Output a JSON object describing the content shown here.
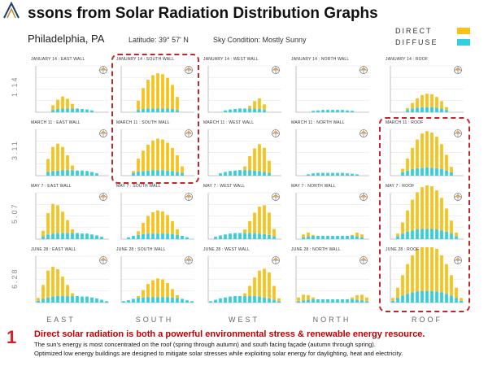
{
  "title": "ssons from Solar Radiation Distribution Graphs",
  "subtitle": {
    "city": "Philadelphia, PA",
    "latitude": "Latitude: 39° 57' N",
    "sky": "Sky Condition: Mostly Sunny"
  },
  "legend": {
    "direct": "DIRECT",
    "diffuse": "DIFFUSE"
  },
  "colors": {
    "direct": "#f6c21b",
    "diffuse": "#33cfe0",
    "highlight": "#c0262c",
    "accent": "#d12027"
  },
  "columns": [
    "EAST",
    "SOUTH",
    "WEST",
    "NORTH",
    "ROOF"
  ],
  "rows": [
    "1.14",
    "3.11",
    "5.07",
    "6.28"
  ],
  "chart_data": {
    "type": "bar",
    "stacked": true,
    "series_names": [
      "DIRECT",
      "DIFFUSE"
    ],
    "hours": [
      "5",
      "6",
      "7",
      "8",
      "9",
      "10",
      "11",
      "12",
      "13",
      "14",
      "15",
      "16",
      "17",
      "18",
      "19"
    ],
    "ylim": [
      0,
      10
    ],
    "panels": [
      [
        {
          "title": "JANUARY 14 : EAST WALL",
          "direct": [
            0,
            0,
            0,
            1.0,
            2.0,
            2.6,
            2.1,
            1.0,
            0,
            0,
            0,
            0,
            0,
            0,
            0
          ],
          "diffuse": [
            0,
            0,
            0,
            0.5,
            0.7,
            0.8,
            0.8,
            0.8,
            0.8,
            0.7,
            0.6,
            0.4,
            0,
            0,
            0
          ]
        },
        {
          "title": "JANUARY 14 : SOUTH WALL",
          "direct": [
            0,
            0,
            0,
            2.0,
            4.5,
            6.2,
            7.2,
            7.6,
            7.4,
            6.6,
            5.2,
            2.8,
            0,
            0,
            0
          ],
          "diffuse": [
            0,
            0,
            0,
            0.5,
            0.7,
            0.8,
            0.8,
            0.8,
            0.8,
            0.8,
            0.7,
            0.5,
            0,
            0,
            0
          ]
        },
        {
          "title": "JANUARY 14 : WEST WALL",
          "direct": [
            0,
            0,
            0,
            0,
            0,
            0,
            0,
            0,
            0.6,
            1.6,
            2.3,
            1.2,
            0,
            0,
            0
          ],
          "diffuse": [
            0,
            0,
            0,
            0.4,
            0.6,
            0.7,
            0.8,
            0.8,
            0.8,
            0.8,
            0.7,
            0.5,
            0,
            0,
            0
          ]
        },
        {
          "title": "JANUARY 14 : NORTH WALL",
          "direct": [
            0,
            0,
            0,
            0,
            0,
            0,
            0,
            0,
            0,
            0,
            0,
            0,
            0,
            0,
            0
          ],
          "diffuse": [
            0,
            0,
            0,
            0.3,
            0.4,
            0.5,
            0.5,
            0.5,
            0.5,
            0.5,
            0.4,
            0.3,
            0,
            0,
            0
          ]
        },
        {
          "title": "JANUARY 14 : ROOF",
          "direct": [
            0,
            0,
            0,
            0.4,
            1.2,
            2.0,
            2.6,
            2.9,
            2.8,
            2.3,
            1.6,
            0.6,
            0,
            0,
            0
          ],
          "diffuse": [
            0,
            0,
            0,
            0.5,
            0.8,
            1.0,
            1.1,
            1.1,
            1.1,
            1.0,
            0.8,
            0.5,
            0,
            0,
            0
          ]
        }
      ],
      [
        {
          "title": "MARCH 11 : EAST WALL",
          "direct": [
            0,
            0,
            2.8,
            5.2,
            5.8,
            5.0,
            3.2,
            1.0,
            0,
            0,
            0,
            0,
            0,
            0,
            0
          ],
          "diffuse": [
            0,
            0,
            0.8,
            1.0,
            1.1,
            1.2,
            1.2,
            1.2,
            1.1,
            1.1,
            1.0,
            0.8,
            0.5,
            0,
            0
          ]
        },
        {
          "title": "MARCH 11 : SOUTH WALL",
          "direct": [
            0,
            0,
            0.4,
            2.8,
            4.4,
            5.6,
            6.4,
            6.8,
            6.6,
            6.0,
            5.0,
            3.6,
            1.4,
            0,
            0
          ],
          "diffuse": [
            0,
            0,
            0.6,
            0.9,
            1.0,
            1.1,
            1.2,
            1.2,
            1.2,
            1.1,
            1.0,
            0.8,
            0.6,
            0,
            0
          ]
        },
        {
          "title": "MARCH 11 : WEST WALL",
          "direct": [
            0,
            0,
            0,
            0,
            0,
            0,
            0,
            0.8,
            3.0,
            4.8,
            5.8,
            5.2,
            2.6,
            0,
            0
          ],
          "diffuse": [
            0,
            0,
            0.5,
            0.8,
            1.0,
            1.1,
            1.2,
            1.2,
            1.2,
            1.1,
            1.0,
            0.8,
            0.6,
            0,
            0
          ]
        },
        {
          "title": "MARCH 11 : NORTH WALL",
          "direct": [
            0,
            0,
            0,
            0,
            0,
            0,
            0,
            0,
            0,
            0,
            0,
            0,
            0,
            0,
            0
          ],
          "diffuse": [
            0,
            0,
            0.3,
            0.5,
            0.6,
            0.6,
            0.6,
            0.6,
            0.6,
            0.6,
            0.5,
            0.4,
            0.3,
            0,
            0
          ]
        },
        {
          "title": "MARCH 11 : ROOF",
          "direct": [
            0,
            0,
            0.8,
            2.6,
            4.6,
            6.2,
            7.4,
            7.8,
            7.6,
            6.8,
            5.4,
            3.4,
            1.2,
            0,
            0
          ],
          "diffuse": [
            0,
            0,
            0.7,
            1.1,
            1.4,
            1.6,
            1.7,
            1.8,
            1.7,
            1.6,
            1.4,
            1.1,
            0.7,
            0,
            0
          ]
        }
      ],
      [
        {
          "title": "MAY 7 : EAST WALL",
          "direct": [
            0,
            1.2,
            4.6,
            6.4,
            6.0,
            4.6,
            2.8,
            0.8,
            0,
            0,
            0,
            0,
            0,
            0,
            0
          ],
          "diffuse": [
            0,
            0.6,
            1.0,
            1.2,
            1.3,
            1.3,
            1.3,
            1.3,
            1.3,
            1.2,
            1.2,
            1.0,
            0.8,
            0.5,
            0
          ],
          "bars": 15
        },
        {
          "title": "MAY 7 : SOUTH WALL",
          "direct": [
            0,
            0,
            0,
            0.8,
            2.4,
            3.8,
            4.6,
            5.0,
            4.8,
            4.0,
            2.8,
            1.2,
            0,
            0,
            0
          ],
          "diffuse": [
            0,
            0.4,
            0.7,
            0.9,
            1.1,
            1.2,
            1.2,
            1.2,
            1.2,
            1.2,
            1.1,
            0.9,
            0.7,
            0.4,
            0
          ]
        },
        {
          "title": "MAY 7 : WEST WALL",
          "direct": [
            0,
            0,
            0,
            0,
            0,
            0,
            0,
            0.8,
            2.6,
            4.4,
            5.8,
            6.2,
            4.8,
            1.6,
            0
          ],
          "diffuse": [
            0,
            0.5,
            0.8,
            1.0,
            1.2,
            1.3,
            1.3,
            1.3,
            1.3,
            1.3,
            1.2,
            1.1,
            0.9,
            0.6,
            0
          ]
        },
        {
          "title": "MAY 7 : NORTH WALL",
          "direct": [
            0,
            0.6,
            0.8,
            0.2,
            0,
            0,
            0,
            0,
            0,
            0,
            0,
            0.2,
            0.8,
            0.6,
            0
          ],
          "diffuse": [
            0,
            0.4,
            0.6,
            0.7,
            0.7,
            0.7,
            0.7,
            0.7,
            0.7,
            0.7,
            0.7,
            0.7,
            0.6,
            0.4,
            0
          ]
        },
        {
          "title": "MAY 7 : ROOF",
          "direct": [
            0,
            0.6,
            2.4,
            4.6,
            6.6,
            8.0,
            9.0,
            9.4,
            9.2,
            8.4,
            7.0,
            5.0,
            2.8,
            0.8,
            0
          ],
          "diffuse": [
            0,
            0.6,
            1.2,
            1.6,
            1.9,
            2.1,
            2.2,
            2.2,
            2.2,
            2.1,
            1.9,
            1.6,
            1.2,
            0.6,
            0
          ]
        }
      ],
      [
        {
          "title": "JUNE 28 : EAST WALL",
          "direct": [
            0.6,
            3.0,
            5.8,
            6.4,
            5.8,
            4.2,
            2.4,
            0.6,
            0,
            0,
            0,
            0,
            0,
            0,
            0
          ],
          "diffuse": [
            0.4,
            0.8,
            1.1,
            1.3,
            1.4,
            1.4,
            1.4,
            1.4,
            1.4,
            1.3,
            1.3,
            1.1,
            0.9,
            0.6,
            0.3
          ]
        },
        {
          "title": "JUNE 28 : SOUTH WALL",
          "direct": [
            0,
            0,
            0,
            0.4,
            1.6,
            2.8,
            3.6,
            4.0,
            3.8,
            3.0,
            1.8,
            0.6,
            0,
            0,
            0
          ],
          "diffuse": [
            0.3,
            0.5,
            0.8,
            1.0,
            1.1,
            1.2,
            1.2,
            1.2,
            1.2,
            1.2,
            1.1,
            1.0,
            0.8,
            0.5,
            0.3
          ]
        },
        {
          "title": "JUNE 28 : WEST WALL",
          "direct": [
            0,
            0,
            0,
            0,
            0,
            0,
            0,
            0.6,
            2.2,
            4.0,
            5.6,
            6.2,
            5.6,
            3.0,
            0.6
          ],
          "diffuse": [
            0.3,
            0.6,
            0.9,
            1.1,
            1.3,
            1.4,
            1.4,
            1.4,
            1.4,
            1.4,
            1.3,
            1.1,
            0.9,
            0.6,
            0.3
          ]
        },
        {
          "title": "JUNE 28 : NORTH WALL",
          "direct": [
            0.8,
            1.2,
            1.0,
            0.4,
            0,
            0,
            0,
            0,
            0,
            0,
            0,
            0.4,
            1.0,
            1.2,
            0.8
          ],
          "diffuse": [
            0.3,
            0.5,
            0.6,
            0.7,
            0.7,
            0.7,
            0.7,
            0.7,
            0.7,
            0.7,
            0.7,
            0.7,
            0.6,
            0.5,
            0.3
          ]
        },
        {
          "title": "JUNE 28 : ROOF",
          "direct": [
            0.6,
            2.2,
            4.4,
            6.4,
            8.0,
            9.2,
            9.8,
            10.0,
            9.8,
            9.2,
            8.0,
            6.4,
            4.4,
            2.2,
            0.6
          ],
          "diffuse": [
            0.4,
            1.0,
            1.5,
            1.9,
            2.2,
            2.4,
            2.5,
            2.5,
            2.5,
            2.4,
            2.2,
            1.9,
            1.5,
            1.0,
            0.4
          ]
        }
      ]
    ]
  },
  "bottom": {
    "number": "1",
    "headline": "Direct solar radiation is both a powerful environmental stress & renewable energy resource.",
    "line1": "The sun’s energy is most concentrated on the roof (spring through autumn) and south facing façade (autumn through spring).",
    "line2": "Optimized low energy buildings are designed to mitigate solar stresses while exploiting solar energy for daylighting, heat and electricity."
  }
}
